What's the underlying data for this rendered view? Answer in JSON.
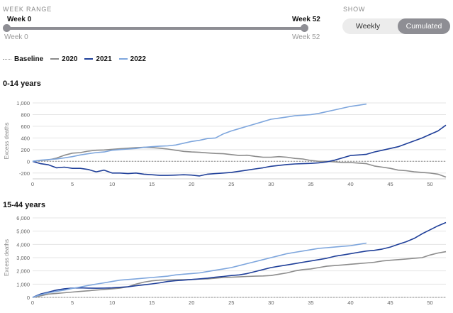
{
  "controls": {
    "week_range_label": "WEEK RANGE",
    "start_week": "Week 0",
    "end_week": "Week 52",
    "start_week_sub": "Week 0",
    "end_week_sub": "Week 52",
    "range_start": 0,
    "range_end": 52,
    "show_label": "SHOW",
    "options": [
      "Weekly",
      "Cumulated"
    ],
    "selected_option": "Cumulated"
  },
  "legend": [
    {
      "label": "Baseline",
      "color": "#8a8a8a",
      "style": "dotted"
    },
    {
      "label": "2020",
      "color": "#8c8c8c",
      "style": "solid"
    },
    {
      "label": "2021",
      "color": "#1f3f99",
      "style": "solid"
    },
    {
      "label": "2022",
      "color": "#7ea6dd",
      "style": "solid"
    }
  ],
  "chart_data": [
    {
      "type": "line",
      "title": "0-14 years",
      "ylabel": "Excess deaths",
      "xlabel": "",
      "xlim": [
        0,
        52
      ],
      "ylim": [
        -300,
        1000
      ],
      "x_ticks": [
        0,
        5,
        10,
        15,
        20,
        25,
        30,
        35,
        40,
        45,
        50
      ],
      "y_ticks": [
        -200,
        0,
        200,
        400,
        600,
        800,
        1000
      ],
      "y_tick_labels": [
        "-200",
        "0",
        "200",
        "400",
        "600",
        "800",
        "1,000"
      ],
      "grid": true,
      "baseline": 0,
      "series": [
        {
          "name": "2020",
          "color": "#8c8c8c",
          "x": [
            0,
            1,
            2,
            3,
            4,
            5,
            6,
            7,
            8,
            9,
            10,
            11,
            12,
            13,
            14,
            15,
            16,
            17,
            18,
            19,
            20,
            21,
            22,
            23,
            24,
            25,
            26,
            27,
            28,
            29,
            30,
            31,
            32,
            33,
            34,
            35,
            36,
            37,
            38,
            39,
            40,
            41,
            42,
            43,
            44,
            45,
            46,
            47,
            48,
            49,
            50,
            51,
            52
          ],
          "y": [
            0,
            15,
            25,
            55,
            105,
            140,
            150,
            175,
            190,
            195,
            205,
            215,
            225,
            235,
            240,
            235,
            225,
            210,
            190,
            170,
            160,
            155,
            145,
            135,
            130,
            115,
            100,
            105,
            85,
            70,
            70,
            80,
            70,
            50,
            40,
            15,
            0,
            0,
            -10,
            -20,
            -20,
            -30,
            -40,
            -80,
            -100,
            -120,
            -150,
            -160,
            -180,
            -190,
            -200,
            -220,
            -270
          ]
        },
        {
          "name": "2021",
          "color": "#1f3f99",
          "x": [
            0,
            1,
            2,
            3,
            4,
            5,
            6,
            7,
            8,
            9,
            10,
            11,
            12,
            13,
            14,
            15,
            16,
            17,
            18,
            19,
            20,
            21,
            22,
            23,
            24,
            25,
            26,
            27,
            28,
            29,
            30,
            31,
            32,
            33,
            34,
            35,
            36,
            37,
            38,
            39,
            40,
            41,
            42,
            43,
            44,
            45,
            46,
            47,
            48,
            49,
            50,
            51,
            52
          ],
          "y": [
            0,
            -40,
            -60,
            -110,
            -100,
            -120,
            -120,
            -140,
            -180,
            -150,
            -200,
            -200,
            -210,
            -200,
            -220,
            -230,
            -240,
            -240,
            -235,
            -230,
            -235,
            -250,
            -220,
            -210,
            -200,
            -190,
            -170,
            -150,
            -130,
            -110,
            -85,
            -70,
            -55,
            -45,
            -40,
            -35,
            -25,
            -10,
            20,
            60,
            100,
            110,
            120,
            160,
            190,
            220,
            250,
            300,
            350,
            400,
            460,
            520,
            620
          ]
        },
        {
          "name": "2022",
          "color": "#7ea6dd",
          "x": [
            0,
            1,
            2,
            3,
            4,
            5,
            6,
            7,
            8,
            9,
            10,
            11,
            12,
            13,
            14,
            15,
            16,
            17,
            18,
            19,
            20,
            21,
            22,
            23,
            24,
            25,
            26,
            27,
            28,
            29,
            30,
            31,
            32,
            33,
            34,
            35,
            36,
            37,
            38,
            39,
            40,
            41,
            42
          ],
          "y": [
            0,
            20,
            30,
            40,
            60,
            80,
            110,
            130,
            150,
            160,
            190,
            200,
            210,
            220,
            240,
            250,
            260,
            265,
            280,
            310,
            340,
            360,
            390,
            400,
            470,
            520,
            560,
            600,
            640,
            680,
            720,
            740,
            760,
            780,
            790,
            800,
            820,
            850,
            880,
            910,
            940,
            960,
            980
          ]
        }
      ]
    },
    {
      "type": "line",
      "title": "15-44 years",
      "ylabel": "Excess deaths",
      "xlabel": "",
      "xlim": [
        0,
        52
      ],
      "ylim": [
        0,
        6000
      ],
      "x_ticks": [
        0,
        5,
        10,
        15,
        20,
        25,
        30,
        35,
        40,
        45,
        50
      ],
      "y_ticks": [
        0,
        1000,
        2000,
        3000,
        4000,
        5000,
        6000
      ],
      "y_tick_labels": [
        "0",
        "1,000",
        "2,000",
        "3,000",
        "4,000",
        "5,000",
        "6,000"
      ],
      "grid": true,
      "baseline": 0,
      "series": [
        {
          "name": "2020",
          "color": "#8c8c8c",
          "x": [
            0,
            1,
            2,
            3,
            4,
            5,
            6,
            7,
            8,
            9,
            10,
            11,
            12,
            13,
            14,
            15,
            16,
            17,
            18,
            19,
            20,
            21,
            22,
            23,
            24,
            25,
            26,
            27,
            28,
            29,
            30,
            31,
            32,
            33,
            34,
            35,
            36,
            37,
            38,
            39,
            40,
            41,
            42,
            43,
            44,
            45,
            46,
            47,
            48,
            49,
            50,
            51,
            52
          ],
          "y": [
            0,
            120,
            250,
            300,
            350,
            400,
            450,
            500,
            550,
            600,
            650,
            700,
            800,
            1000,
            1150,
            1250,
            1300,
            1320,
            1330,
            1340,
            1350,
            1380,
            1400,
            1450,
            1500,
            1520,
            1550,
            1580,
            1600,
            1620,
            1650,
            1750,
            1850,
            2000,
            2100,
            2150,
            2250,
            2350,
            2400,
            2450,
            2500,
            2550,
            2600,
            2650,
            2750,
            2800,
            2850,
            2900,
            2950,
            3000,
            3200,
            3350,
            3450
          ]
        },
        {
          "name": "2021",
          "color": "#1f3f99",
          "x": [
            0,
            1,
            2,
            3,
            4,
            5,
            6,
            7,
            8,
            9,
            10,
            11,
            12,
            13,
            14,
            15,
            16,
            17,
            18,
            19,
            20,
            21,
            22,
            23,
            24,
            25,
            26,
            27,
            28,
            29,
            30,
            31,
            32,
            33,
            34,
            35,
            36,
            37,
            38,
            39,
            40,
            41,
            42,
            43,
            44,
            45,
            46,
            47,
            48,
            49,
            50,
            51,
            52
          ],
          "y": [
            0,
            250,
            400,
            550,
            650,
            700,
            720,
            700,
            690,
            700,
            720,
            760,
            800,
            880,
            950,
            1020,
            1100,
            1200,
            1260,
            1300,
            1350,
            1400,
            1450,
            1520,
            1580,
            1650,
            1700,
            1800,
            1950,
            2100,
            2250,
            2350,
            2450,
            2550,
            2650,
            2750,
            2850,
            2950,
            3100,
            3200,
            3300,
            3400,
            3500,
            3550,
            3650,
            3800,
            4000,
            4200,
            4450,
            4800,
            5100,
            5400,
            5650
          ]
        },
        {
          "name": "2022",
          "color": "#7ea6dd",
          "x": [
            0,
            1,
            2,
            3,
            4,
            5,
            6,
            7,
            8,
            9,
            10,
            11,
            12,
            13,
            14,
            15,
            16,
            17,
            18,
            19,
            20,
            21,
            22,
            23,
            24,
            25,
            26,
            27,
            28,
            29,
            30,
            31,
            32,
            33,
            34,
            35,
            36,
            37,
            38,
            39,
            40,
            41,
            42
          ],
          "y": [
            0,
            200,
            350,
            450,
            550,
            680,
            780,
            900,
            1000,
            1100,
            1200,
            1300,
            1350,
            1400,
            1450,
            1500,
            1550,
            1600,
            1700,
            1750,
            1800,
            1850,
            1950,
            2050,
            2150,
            2250,
            2400,
            2550,
            2700,
            2850,
            3000,
            3150,
            3300,
            3400,
            3500,
            3600,
            3700,
            3750,
            3800,
            3850,
            3900,
            4000,
            4100
          ]
        }
      ]
    }
  ]
}
